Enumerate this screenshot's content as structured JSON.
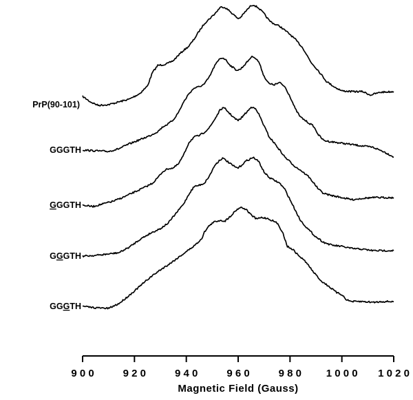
{
  "chart_data": {
    "type": "line",
    "title": "",
    "xlabel": "Magnetic Field (Gauss)",
    "ylabel": "",
    "xlim": [
      900,
      1020
    ],
    "x_ticks": [
      {
        "value": 900,
        "label": "9 0 0"
      },
      {
        "value": 920,
        "label": "9 2 0"
      },
      {
        "value": 940,
        "label": "9 4 0"
      },
      {
        "value": 960,
        "label": "9 6 0"
      },
      {
        "value": 980,
        "label": "9 8 0"
      },
      {
        "value": 1000,
        "label": "1 0 0 0"
      },
      {
        "value": 1020,
        "label": "1 0 2 0"
      }
    ],
    "y_axis": "none",
    "grid": false,
    "legend": "none",
    "line_color": "#000000",
    "series": [
      {
        "name": "PrP(90-101)",
        "label_parts": [
          {
            "text": "PrP(90-101)",
            "underline": false
          }
        ],
        "points": [
          [
            900,
            140
          ],
          [
            903,
            148
          ],
          [
            906,
            153
          ],
          [
            910,
            152
          ],
          [
            914,
            148
          ],
          [
            918,
            144
          ],
          [
            922,
            136
          ],
          [
            925,
            125
          ],
          [
            927,
            105
          ],
          [
            929,
            95
          ],
          [
            931,
            94
          ],
          [
            933,
            92
          ],
          [
            935,
            88
          ],
          [
            937,
            80
          ],
          [
            939,
            73
          ],
          [
            941,
            67
          ],
          [
            943,
            57
          ],
          [
            945,
            45
          ],
          [
            947,
            34
          ],
          [
            949,
            27
          ],
          [
            951,
            20
          ],
          [
            953,
            11
          ],
          [
            954,
            10
          ],
          [
            955,
            11
          ],
          [
            957,
            17
          ],
          [
            959,
            24
          ],
          [
            960,
            27
          ],
          [
            961,
            25
          ],
          [
            963,
            16
          ],
          [
            965,
            8
          ],
          [
            966,
            7
          ],
          [
            968,
            12
          ],
          [
            970,
            20
          ],
          [
            972,
            30
          ],
          [
            974,
            35
          ],
          [
            976,
            38
          ],
          [
            978,
            44
          ],
          [
            980,
            50
          ],
          [
            982,
            57
          ],
          [
            985,
            70
          ],
          [
            988,
            90
          ],
          [
            991,
            103
          ],
          [
            994,
            118
          ],
          [
            997,
            126
          ],
          [
            1000,
            132
          ],
          [
            1004,
            133
          ],
          [
            1008,
            133
          ],
          [
            1011,
            138
          ],
          [
            1013,
            136
          ],
          [
            1015,
            134
          ],
          [
            1020,
            133
          ]
        ]
      },
      {
        "name": "GGGTH",
        "label_parts": [
          {
            "text": "GGGTH",
            "underline": false
          }
        ],
        "points": [
          [
            900,
            218
          ],
          [
            905,
            219
          ],
          [
            910,
            220
          ],
          [
            914,
            216
          ],
          [
            918,
            209
          ],
          [
            922,
            203
          ],
          [
            926,
            197
          ],
          [
            929,
            191
          ],
          [
            931,
            184
          ],
          [
            933,
            180
          ],
          [
            935,
            174
          ],
          [
            937,
            163
          ],
          [
            939,
            148
          ],
          [
            941,
            136
          ],
          [
            943,
            128
          ],
          [
            945,
            126
          ],
          [
            947,
            122
          ],
          [
            949,
            111
          ],
          [
            951,
            95
          ],
          [
            953,
            85
          ],
          [
            954,
            84
          ],
          [
            955,
            86
          ],
          [
            957,
            95
          ],
          [
            959,
            101
          ],
          [
            960,
            102
          ],
          [
            961,
            100
          ],
          [
            963,
            92
          ],
          [
            965,
            83
          ],
          [
            966,
            82
          ],
          [
            968,
            90
          ],
          [
            970,
            111
          ],
          [
            972,
            122
          ],
          [
            974,
            123
          ],
          [
            976,
            120
          ],
          [
            978,
            126
          ],
          [
            980,
            140
          ],
          [
            982,
            158
          ],
          [
            984,
            170
          ],
          [
            987,
            178
          ],
          [
            989,
            183
          ],
          [
            991,
            196
          ],
          [
            993,
            204
          ],
          [
            996,
            206
          ],
          [
            1000,
            208
          ],
          [
            1004,
            210
          ],
          [
            1008,
            212
          ],
          [
            1012,
            214
          ],
          [
            1016,
            220
          ],
          [
            1020,
            228
          ]
        ]
      },
      {
        "name": "GGGTH",
        "label_parts": [
          {
            "text": "G",
            "underline": true
          },
          {
            "text": "GGTH",
            "underline": false
          }
        ],
        "points": [
          [
            900,
            298
          ],
          [
            904,
            300
          ],
          [
            908,
            296
          ],
          [
            912,
            292
          ],
          [
            916,
            286
          ],
          [
            920,
            279
          ],
          [
            924,
            272
          ],
          [
            927,
            266
          ],
          [
            929,
            258
          ],
          [
            931,
            249
          ],
          [
            933,
            245
          ],
          [
            935,
            244
          ],
          [
            937,
            238
          ],
          [
            939,
            225
          ],
          [
            941,
            207
          ],
          [
            943,
            199
          ],
          [
            945,
            197
          ],
          [
            947,
            192
          ],
          [
            949,
            185
          ],
          [
            951,
            173
          ],
          [
            953,
            160
          ],
          [
            954,
            157
          ],
          [
            955,
            158
          ],
          [
            957,
            166
          ],
          [
            959,
            173
          ],
          [
            960,
            175
          ],
          [
            961,
            172
          ],
          [
            963,
            164
          ],
          [
            965,
            156
          ],
          [
            966,
            155
          ],
          [
            968,
            166
          ],
          [
            970,
            183
          ],
          [
            972,
            199
          ],
          [
            974,
            208
          ],
          [
            976,
            218
          ],
          [
            978,
            228
          ],
          [
            980,
            235
          ],
          [
            982,
            242
          ],
          [
            984,
            247
          ],
          [
            987,
            256
          ],
          [
            989,
            265
          ],
          [
            991,
            275
          ],
          [
            993,
            281
          ],
          [
            996,
            284
          ],
          [
            1000,
            287
          ],
          [
            1004,
            290
          ],
          [
            1008,
            288
          ],
          [
            1012,
            287
          ],
          [
            1016,
            287
          ],
          [
            1020,
            287
          ]
        ]
      },
      {
        "name": "GGGTH",
        "label_parts": [
          {
            "text": "G",
            "underline": false
          },
          {
            "text": "G",
            "underline": true
          },
          {
            "text": "GTH",
            "underline": false
          }
        ],
        "points": [
          [
            900,
            372
          ],
          [
            905,
            371
          ],
          [
            910,
            369
          ],
          [
            914,
            367
          ],
          [
            918,
            359
          ],
          [
            922,
            348
          ],
          [
            926,
            339
          ],
          [
            930,
            332
          ],
          [
            933,
            324
          ],
          [
            936,
            310
          ],
          [
            939,
            296
          ],
          [
            941,
            282
          ],
          [
            943,
            271
          ],
          [
            945,
            269
          ],
          [
            947,
            266
          ],
          [
            949,
            255
          ],
          [
            951,
            240
          ],
          [
            953,
            232
          ],
          [
            954,
            230
          ],
          [
            955,
            232
          ],
          [
            957,
            238
          ],
          [
            959,
            243
          ],
          [
            960,
            244
          ],
          [
            961,
            241
          ],
          [
            963,
            234
          ],
          [
            965,
            230
          ],
          [
            966,
            229
          ],
          [
            968,
            235
          ],
          [
            970,
            250
          ],
          [
            972,
            258
          ],
          [
            974,
            262
          ],
          [
            976,
            266
          ],
          [
            978,
            275
          ],
          [
            980,
            290
          ],
          [
            982,
            305
          ],
          [
            984,
            320
          ],
          [
            987,
            333
          ],
          [
            990,
            344
          ],
          [
            993,
            352
          ],
          [
            996,
            356
          ],
          [
            1000,
            358
          ],
          [
            1004,
            361
          ],
          [
            1008,
            362
          ],
          [
            1012,
            364
          ],
          [
            1016,
            364
          ],
          [
            1020,
            364
          ]
        ]
      },
      {
        "name": "GGGTH",
        "label_parts": [
          {
            "text": "GG",
            "underline": false
          },
          {
            "text": "G",
            "underline": true
          },
          {
            "text": "TH",
            "underline": false
          }
        ],
        "points": [
          [
            900,
            445
          ],
          [
            905,
            447
          ],
          [
            910,
            448
          ],
          [
            914,
            441
          ],
          [
            918,
            429
          ],
          [
            922,
            416
          ],
          [
            926,
            403
          ],
          [
            930,
            392
          ],
          [
            934,
            382
          ],
          [
            938,
            371
          ],
          [
            942,
            360
          ],
          [
            944,
            354
          ],
          [
            946,
            346
          ],
          [
            947,
            337
          ],
          [
            949,
            327
          ],
          [
            951,
            322
          ],
          [
            953,
            320
          ],
          [
            955,
            321
          ],
          [
            957,
            314
          ],
          [
            959,
            306
          ],
          [
            960,
            303
          ],
          [
            961,
            301
          ],
          [
            963,
            304
          ],
          [
            965,
            312
          ],
          [
            967,
            318
          ],
          [
            969,
            316
          ],
          [
            971,
            317
          ],
          [
            973,
            320
          ],
          [
            975,
            324
          ],
          [
            977,
            336
          ],
          [
            979,
            358
          ],
          [
            981,
            362
          ],
          [
            983,
            370
          ],
          [
            986,
            380
          ],
          [
            989,
            395
          ],
          [
            992,
            408
          ],
          [
            995,
            416
          ],
          [
            998,
            425
          ],
          [
            1000,
            428
          ],
          [
            1002,
            436
          ],
          [
            1004,
            438
          ],
          [
            1008,
            438
          ],
          [
            1012,
            439
          ],
          [
            1016,
            438
          ],
          [
            1020,
            438
          ]
        ]
      }
    ]
  }
}
